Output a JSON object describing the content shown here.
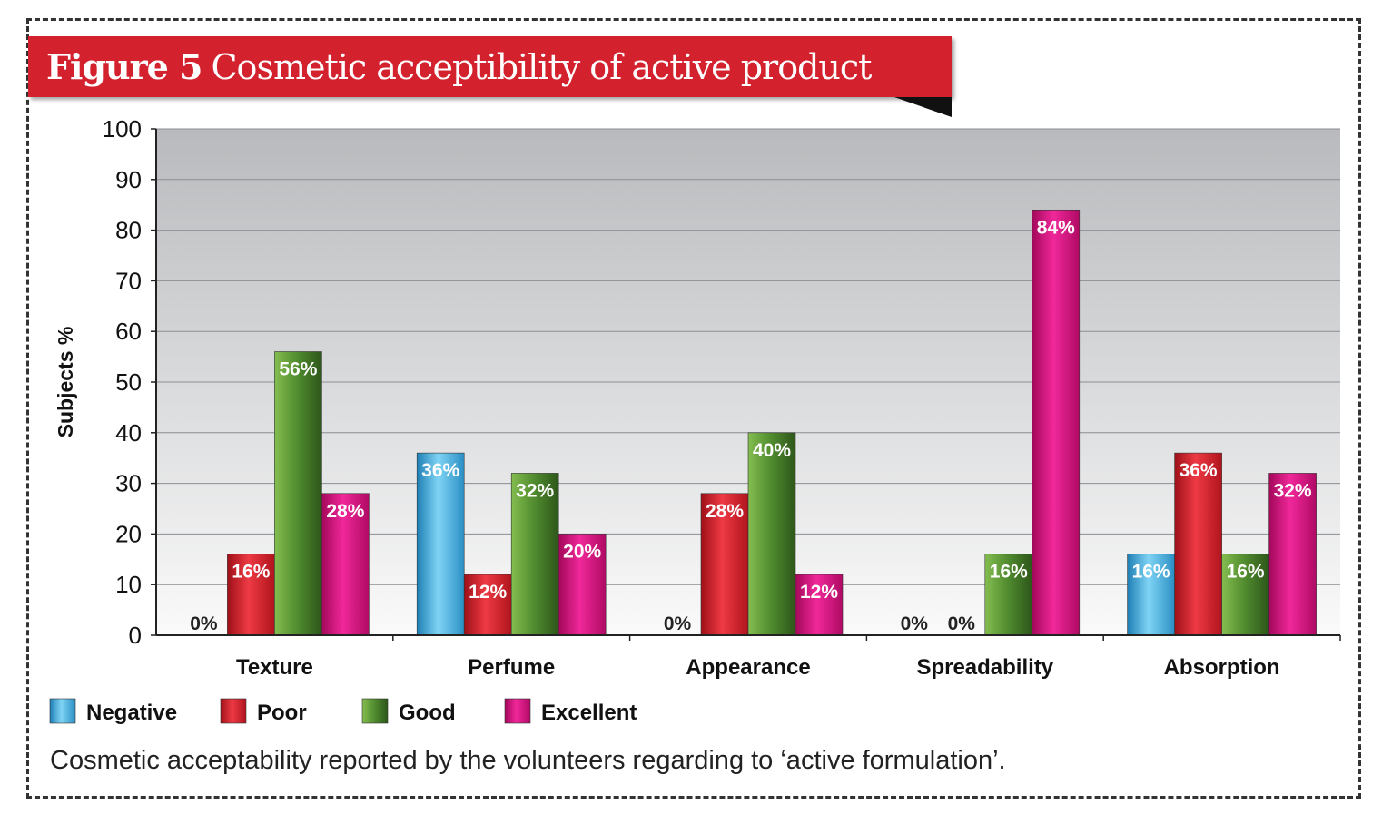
{
  "figure": {
    "label": "Figure 5",
    "title": "Cosmetic acceptibility of active product",
    "caption": "Cosmetic acceptability reported by the volunteers regarding to ‘active formulation’."
  },
  "colors": {
    "Negative": "#3fb4e4",
    "Poor": "#d3202e",
    "Good": "#4f8a2e",
    "Excellent": "#d90f7d"
  },
  "chart_data": {
    "type": "bar",
    "categories": [
      "Texture",
      "Perfume",
      "Appearance",
      "Spreadability",
      "Absorption"
    ],
    "series": [
      {
        "name": "Negative",
        "values": [
          0,
          36,
          0,
          0,
          16
        ],
        "labels": [
          "0%",
          "36%",
          "0%",
          "0%",
          "16%"
        ]
      },
      {
        "name": "Poor",
        "values": [
          16,
          12,
          28,
          0,
          36
        ],
        "labels": [
          "16%",
          "12%",
          "28%",
          "0%",
          "36%"
        ]
      },
      {
        "name": "Good",
        "values": [
          56,
          32,
          40,
          16,
          16
        ],
        "labels": [
          "56%",
          "32%",
          "40%",
          "16%",
          "16%"
        ]
      },
      {
        "name": "Excellent",
        "values": [
          28,
          20,
          12,
          84,
          32
        ],
        "labels": [
          "28%",
          "20%",
          "12%",
          "84%",
          "32%"
        ]
      }
    ],
    "ylabel": "Subjects %",
    "xlabel": "",
    "ylim": [
      0,
      100
    ],
    "yticks": [
      0,
      10,
      20,
      30,
      40,
      50,
      60,
      70,
      80,
      90,
      100
    ],
    "grid": true,
    "legend_position": "bottom-left"
  }
}
